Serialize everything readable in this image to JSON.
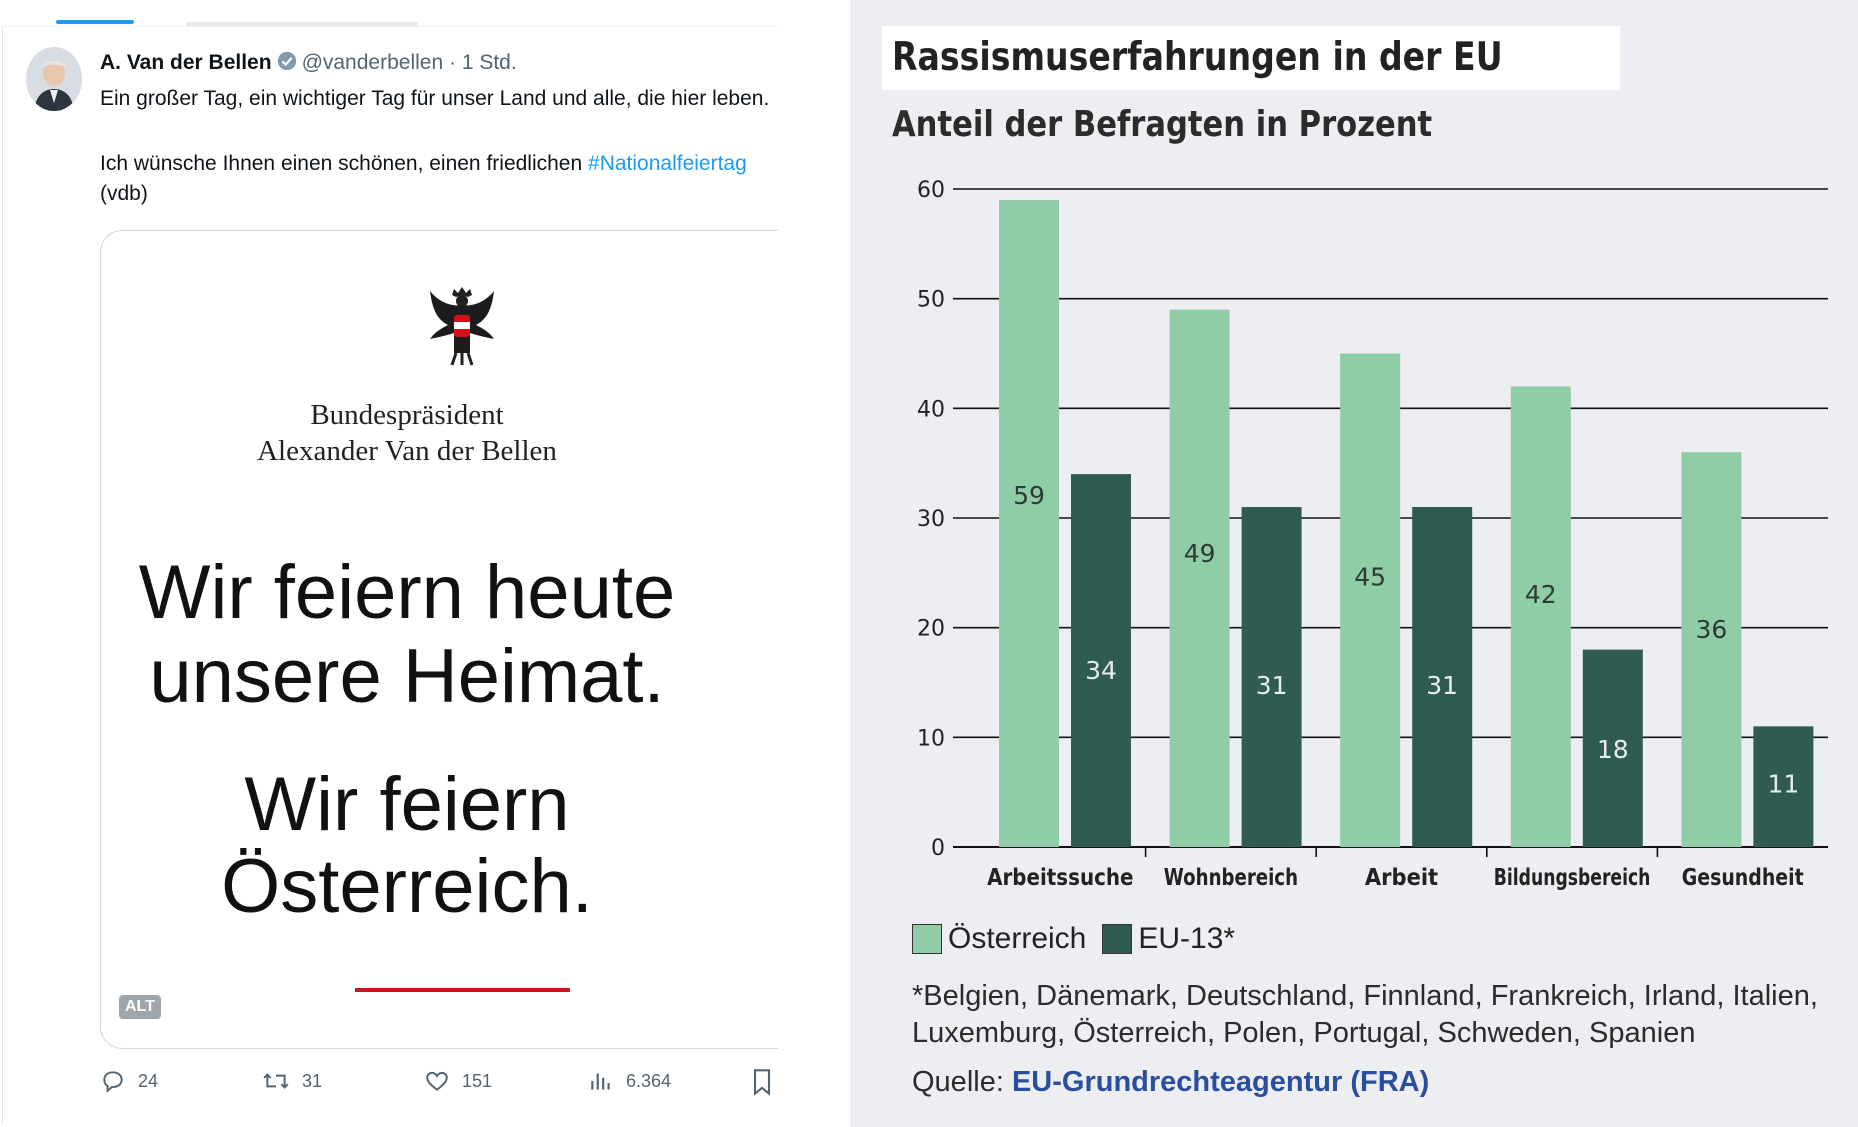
{
  "tweet": {
    "author_name": "A. Van der Bellen",
    "handle": "@vanderbellen",
    "separator": "·",
    "time": "1 Std.",
    "text_line1": "Ein großer Tag, ein wichtiger Tag für unser Land und alle, die hier leben.",
    "text_line2_prefix": "Ich wünsche Ihnen einen schönen, einen friedlichen ",
    "hashtag": "#Nationalfeiertag",
    "text_line3": "(vdb)",
    "card": {
      "caption_line1": "Bundespräsident",
      "caption_line2": "Alexander Van der Bellen",
      "headline_line1": "Wir feiern heute",
      "headline_line2": "unsere Heimat.",
      "headline_line3": "Wir feiern",
      "headline_line4": "Österreich.",
      "alt_label": "ALT"
    },
    "actions": {
      "replies": "24",
      "retweets": "31",
      "likes": "151",
      "views": "6.364"
    }
  },
  "chart_data": {
    "type": "bar",
    "title": "Rassismuserfahrungen in der EU",
    "subtitle": "Anteil der Befragten in Prozent",
    "categories": [
      "Arbeitssuche",
      "Wohnbereich",
      "Arbeit",
      "Bildungsbereich",
      "Gesundheit"
    ],
    "series": [
      {
        "name": "Österreich",
        "values": [
          59,
          49,
          45,
          42,
          36
        ],
        "color": "#8ecda6"
      },
      {
        "name": "EU-13*",
        "values": [
          34,
          31,
          31,
          18,
          11
        ],
        "color": "#2f5b52"
      }
    ],
    "ylim": [
      0,
      60
    ],
    "yticks": [
      0,
      10,
      20,
      30,
      40,
      50,
      60
    ],
    "grid": true,
    "legend": "bottom-left",
    "footnote": "*Belgien, Dänemark, Deutschland, Finnland, Frankreich, Irland, Italien, Luxemburg, Österreich, Polen, Portugal, Schweden, Spanien",
    "source_label": "Quelle:",
    "source_name": "EU-Grundrechteagentur (FRA)"
  }
}
